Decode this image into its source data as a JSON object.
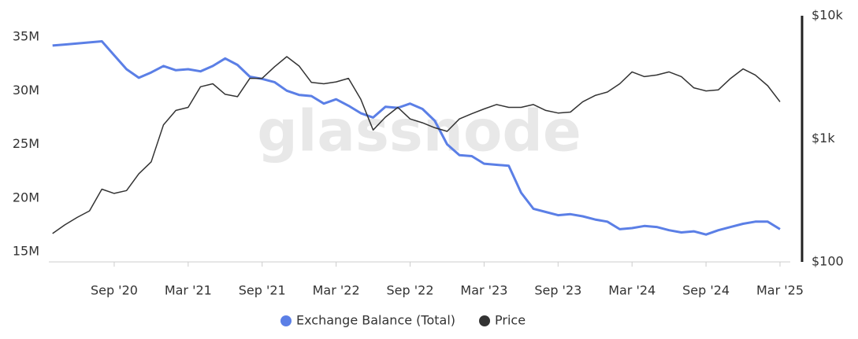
{
  "chart_data": {
    "type": "line",
    "watermark": "glassnode",
    "x": [
      "2020-04",
      "2020-05",
      "2020-06",
      "2020-07",
      "2020-08",
      "2020-09",
      "2020-10",
      "2020-11",
      "2020-12",
      "2021-01",
      "2021-02",
      "2021-03",
      "2021-04",
      "2021-05",
      "2021-06",
      "2021-07",
      "2021-08",
      "2021-09",
      "2021-10",
      "2021-11",
      "2021-12",
      "2022-01",
      "2022-02",
      "2022-03",
      "2022-04",
      "2022-05",
      "2022-06",
      "2022-07",
      "2022-08",
      "2022-09",
      "2022-10",
      "2022-11",
      "2022-12",
      "2023-01",
      "2023-02",
      "2023-03",
      "2023-04",
      "2023-05",
      "2023-06",
      "2023-07",
      "2023-08",
      "2023-09",
      "2023-10",
      "2023-11",
      "2023-12",
      "2024-01",
      "2024-02",
      "2024-03",
      "2024-04",
      "2024-05",
      "2024-06",
      "2024-07",
      "2024-08",
      "2024-09",
      "2024-10",
      "2024-11",
      "2024-12",
      "2025-01",
      "2025-02",
      "2025-03"
    ],
    "xlim": [
      "2020-04",
      "2025-03"
    ],
    "xticks": [
      {
        "value": "2020-09",
        "label": "Sep '20"
      },
      {
        "value": "2021-03",
        "label": "Mar '21"
      },
      {
        "value": "2021-09",
        "label": "Sep '21"
      },
      {
        "value": "2022-03",
        "label": "Mar '22"
      },
      {
        "value": "2022-09",
        "label": "Sep '22"
      },
      {
        "value": "2023-03",
        "label": "Mar '23"
      },
      {
        "value": "2023-09",
        "label": "Sep '23"
      },
      {
        "value": "2024-03",
        "label": "Mar '24"
      },
      {
        "value": "2024-09",
        "label": "Sep '24"
      },
      {
        "value": "2025-03",
        "label": "Mar '25"
      }
    ],
    "ylim": [
      14.05,
      36.98
    ],
    "yticks": [
      {
        "value": 15,
        "label": "15M"
      },
      {
        "value": 20,
        "label": "20M"
      },
      {
        "value": 25,
        "label": "25M"
      },
      {
        "value": 30,
        "label": "30M"
      },
      {
        "value": 35,
        "label": "35M"
      }
    ],
    "y2lim": [
      100,
      10000
    ],
    "y2scale": "log",
    "y2ticks": [
      {
        "value": 100,
        "label": "$100"
      },
      {
        "value": 1000,
        "label": "$1k"
      },
      {
        "value": 10000,
        "label": "$10k"
      }
    ],
    "legend": "bottom",
    "series": [
      {
        "name": "Exchange Balance (Total)",
        "color": "#5b7fe6",
        "values": [
          34.2,
          34.3,
          34.4,
          34.5,
          34.6,
          33.3,
          32.0,
          31.2,
          31.7,
          32.3,
          31.9,
          32.0,
          31.8,
          32.3,
          33.0,
          32.4,
          31.3,
          31.1,
          30.8,
          30.0,
          29.6,
          29.5,
          28.8,
          29.2,
          28.6,
          27.9,
          27.5,
          28.5,
          28.4,
          28.8,
          28.3,
          27.2,
          25.0,
          24.0,
          23.9,
          23.2,
          23.1,
          23.0,
          20.5,
          19.0,
          18.7,
          18.4,
          18.5,
          18.3,
          18.0,
          17.8,
          17.1,
          17.2,
          17.4,
          17.3,
          17.0,
          16.8,
          16.9,
          16.6,
          17.0,
          17.3,
          17.6,
          17.8,
          17.8,
          17.1
        ]
      },
      {
        "name": "Price",
        "color": "#333333",
        "axis": "y2",
        "values": [
          170,
          200,
          230,
          260,
          390,
          360,
          380,
          520,
          650,
          1300,
          1700,
          1800,
          2650,
          2800,
          2300,
          2200,
          3100,
          3100,
          3850,
          4650,
          3900,
          2870,
          2800,
          2900,
          3100,
          2100,
          1180,
          1500,
          1800,
          1450,
          1350,
          1230,
          1150,
          1450,
          1600,
          1750,
          1900,
          1800,
          1800,
          1900,
          1700,
          1620,
          1650,
          2000,
          2250,
          2400,
          2800,
          3500,
          3200,
          3300,
          3500,
          3200,
          2600,
          2450,
          2500,
          3100,
          3700,
          3300,
          2700,
          2000
        ]
      }
    ]
  }
}
